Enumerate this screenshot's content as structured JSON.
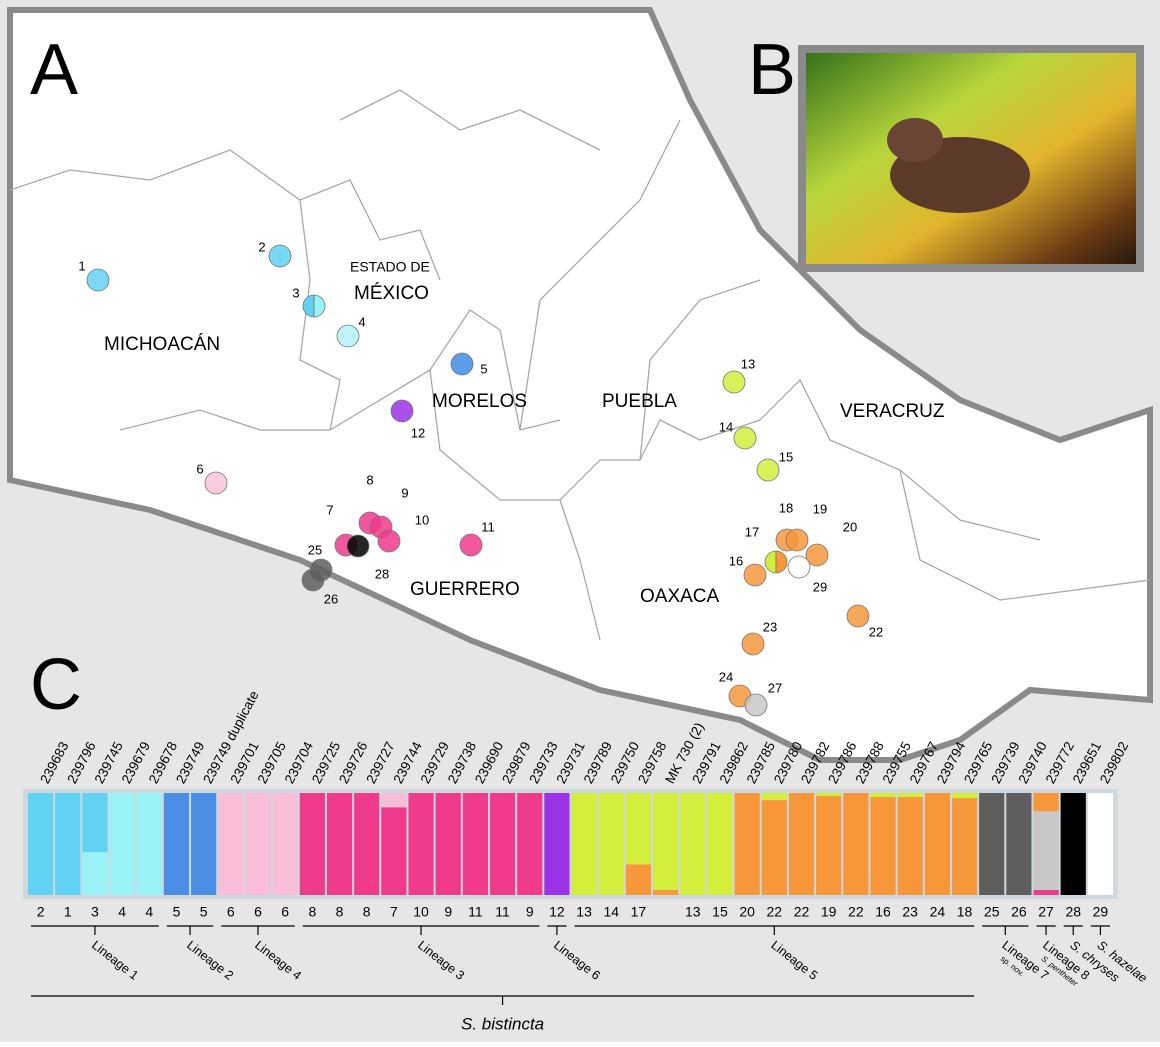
{
  "panels": {
    "a": "A",
    "b": "B",
    "c": "C"
  },
  "regions": [
    "MICHOACÁN",
    "ESTADO DE",
    "MÉXICO",
    "MORELOS",
    "PUEBLA",
    "VERACRUZ",
    "GUERRERO",
    "OAXACA"
  ],
  "sites": [
    {
      "label": 1,
      "colors": [
        "#62d2f2"
      ]
    },
    {
      "label": 2,
      "colors": [
        "#62d2f2"
      ]
    },
    {
      "label": 3,
      "colors": [
        "#62d2f2",
        "#98f2f6"
      ]
    },
    {
      "label": 4,
      "colors": [
        "#b2f3f6"
      ]
    },
    {
      "label": 5,
      "colors": [
        "#3f8be6"
      ]
    },
    {
      "label": 12,
      "colors": [
        "#9a33e6"
      ]
    },
    {
      "label": 6,
      "colors": [
        "#f8c3da"
      ]
    },
    {
      "label": 7,
      "colors": [
        "#f03a8c"
      ]
    },
    {
      "label": 8,
      "colors": [
        "#f03a8c"
      ]
    },
    {
      "label": 9,
      "colors": [
        "#f03a8c"
      ]
    },
    {
      "label": 10,
      "colors": [
        "#f03a8c"
      ]
    },
    {
      "label": 11,
      "colors": [
        "#f03a8c"
      ]
    },
    {
      "label": 28,
      "colors": [
        "#000000"
      ]
    },
    {
      "label": 25,
      "colors": [
        "#5e5e5e"
      ]
    },
    {
      "label": 26,
      "colors": [
        "#5e5e5e"
      ]
    },
    {
      "label": 13,
      "colors": [
        "#d2ee3b"
      ]
    },
    {
      "label": 14,
      "colors": [
        "#d2ee3b"
      ]
    },
    {
      "label": 15,
      "colors": [
        "#d2ee3b"
      ]
    },
    {
      "label": 16,
      "colors": [
        "#f7973a"
      ]
    },
    {
      "label": 17,
      "colors": [
        "#d2ee3b",
        "#f7973a"
      ]
    },
    {
      "label": 18,
      "colors": [
        "#f7973a"
      ]
    },
    {
      "label": 19,
      "colors": [
        "#f7973a"
      ]
    },
    {
      "label": 20,
      "colors": [
        "#f7973a"
      ]
    },
    {
      "label": 29,
      "colors": [
        "#ffffff"
      ]
    },
    {
      "label": 22,
      "colors": [
        "#f7973a"
      ]
    },
    {
      "label": 23,
      "colors": [
        "#f7973a"
      ]
    },
    {
      "label": 24,
      "colors": [
        "#f7973a"
      ]
    },
    {
      "label": 27,
      "colors": [
        "#c8c8c8"
      ]
    }
  ],
  "structure": {
    "bars": [
      {
        "id": "239683",
        "site": 2,
        "segments": [
          {
            "color": "#62d2f2",
            "value": 100
          }
        ]
      },
      {
        "id": "239796",
        "site": 1,
        "segments": [
          {
            "color": "#62d2f2",
            "value": 100
          }
        ]
      },
      {
        "id": "239745",
        "site": 3,
        "segments": [
          {
            "color": "#98f2f6",
            "value": 42
          },
          {
            "color": "#62d2f2",
            "value": 58
          }
        ]
      },
      {
        "id": "239679",
        "site": 4,
        "segments": [
          {
            "color": "#98f2f6",
            "value": 100
          }
        ]
      },
      {
        "id": "239678",
        "site": 4,
        "segments": [
          {
            "color": "#98f2f6",
            "value": 100
          }
        ]
      },
      {
        "id": "239749",
        "site": 5,
        "segments": [
          {
            "color": "#4a8ee6",
            "value": 100
          }
        ]
      },
      {
        "id": "239749 duplicate",
        "site": 5,
        "segments": [
          {
            "color": "#4a8ee6",
            "value": 100
          }
        ]
      },
      {
        "id": "239701",
        "site": 6,
        "segments": [
          {
            "color": "#f8bdd7",
            "value": 100
          }
        ]
      },
      {
        "id": "239705",
        "site": 6,
        "segments": [
          {
            "color": "#f8bdd7",
            "value": 100
          }
        ]
      },
      {
        "id": "239704",
        "site": 6,
        "segments": [
          {
            "color": "#f8bdd7",
            "value": 100
          }
        ]
      },
      {
        "id": "239725",
        "site": 8,
        "segments": [
          {
            "color": "#f03a8c",
            "value": 100
          }
        ]
      },
      {
        "id": "239726",
        "site": 8,
        "segments": [
          {
            "color": "#f03a8c",
            "value": 100
          }
        ]
      },
      {
        "id": "239727",
        "site": 8,
        "segments": [
          {
            "color": "#f03a8c",
            "value": 100
          }
        ]
      },
      {
        "id": "239744",
        "site": 7,
        "segments": [
          {
            "color": "#f03a8c",
            "value": 86
          },
          {
            "color": "#f8bdd7",
            "value": 14
          }
        ]
      },
      {
        "id": "239729",
        "site": 10,
        "segments": [
          {
            "color": "#f03a8c",
            "value": 100
          }
        ]
      },
      {
        "id": "239738",
        "site": 9,
        "segments": [
          {
            "color": "#f03a8c",
            "value": 100
          }
        ]
      },
      {
        "id": "239690",
        "site": 11,
        "segments": [
          {
            "color": "#f03a8c",
            "value": 100
          }
        ]
      },
      {
        "id": "239879",
        "site": 11,
        "segments": [
          {
            "color": "#f03a8c",
            "value": 100
          }
        ]
      },
      {
        "id": "239733",
        "site": 9,
        "segments": [
          {
            "color": "#f03a8c",
            "value": 100
          }
        ]
      },
      {
        "id": "239731",
        "site": 12,
        "segments": [
          {
            "color": "#9a33e6",
            "value": 100
          }
        ]
      },
      {
        "id": "239789",
        "site": 13,
        "segments": [
          {
            "color": "#d2ee3b",
            "value": 100
          }
        ]
      },
      {
        "id": "239750",
        "site": 14,
        "segments": [
          {
            "color": "#d2ee3b",
            "value": 100
          }
        ]
      },
      {
        "id": "239758",
        "site": 17,
        "segments": [
          {
            "color": "#f7973a",
            "value": 30
          },
          {
            "color": "#d2ee3b",
            "value": 70
          }
        ]
      },
      {
        "id": "MK 730 (2)",
        "site": null,
        "segments": [
          {
            "color": "#f7973a",
            "value": 5
          },
          {
            "color": "#d2ee3b",
            "value": 95
          }
        ]
      },
      {
        "id": "239791",
        "site": 13,
        "segments": [
          {
            "color": "#d2ee3b",
            "value": 100
          }
        ]
      },
      {
        "id": "239862",
        "site": 15,
        "segments": [
          {
            "color": "#d2ee3b",
            "value": 100
          }
        ]
      },
      {
        "id": "239785",
        "site": 20,
        "segments": [
          {
            "color": "#f7973a",
            "value": 100
          }
        ]
      },
      {
        "id": "239780",
        "site": 22,
        "segments": [
          {
            "color": "#f7973a",
            "value": 93
          },
          {
            "color": "#d2ee3b",
            "value": 7
          }
        ]
      },
      {
        "id": "239782",
        "site": 22,
        "segments": [
          {
            "color": "#f7973a",
            "value": 100
          }
        ]
      },
      {
        "id": "239786",
        "site": 19,
        "segments": [
          {
            "color": "#f7973a",
            "value": 97
          },
          {
            "color": "#d2ee3b",
            "value": 3
          }
        ]
      },
      {
        "id": "239788",
        "site": 22,
        "segments": [
          {
            "color": "#f7973a",
            "value": 100
          }
        ]
      },
      {
        "id": "239755",
        "site": 16,
        "segments": [
          {
            "color": "#f7973a",
            "value": 96
          },
          {
            "color": "#d2ee3b",
            "value": 4
          }
        ]
      },
      {
        "id": "239767",
        "site": 23,
        "segments": [
          {
            "color": "#f7973a",
            "value": 96
          },
          {
            "color": "#d2ee3b",
            "value": 4
          }
        ]
      },
      {
        "id": "239794",
        "site": 24,
        "segments": [
          {
            "color": "#f7973a",
            "value": 100
          }
        ]
      },
      {
        "id": "239765",
        "site": 18,
        "segments": [
          {
            "color": "#f7973a",
            "value": 95
          },
          {
            "color": "#d2ee3b",
            "value": 5
          }
        ]
      },
      {
        "id": "239739",
        "site": 25,
        "segments": [
          {
            "color": "#5e5e5e",
            "value": 100
          }
        ]
      },
      {
        "id": "239740",
        "site": 26,
        "segments": [
          {
            "color": "#5e5e5e",
            "value": 100
          }
        ]
      },
      {
        "id": "239772",
        "site": 27,
        "segments": [
          {
            "color": "#f03a8c",
            "value": 5
          },
          {
            "color": "#c8c8c8",
            "value": 77
          },
          {
            "color": "#f7973a",
            "value": 18
          }
        ]
      },
      {
        "id": "239651",
        "site": 28,
        "segments": [
          {
            "color": "#000000",
            "value": 100
          }
        ]
      },
      {
        "id": "239802",
        "site": 29,
        "segments": [
          {
            "color": "#ffffff",
            "value": 100
          }
        ]
      }
    ],
    "groups": [
      {
        "label": "Lineage 1",
        "from": 0,
        "to": 4
      },
      {
        "label": "Lineage 2",
        "from": 5,
        "to": 6
      },
      {
        "label": "Lineage 4",
        "from": 7,
        "to": 9
      },
      {
        "label": "Lineage 3",
        "from": 10,
        "to": 18
      },
      {
        "label": "Lineage 6",
        "from": 19,
        "to": 19
      },
      {
        "label": "Lineage 5",
        "from": 20,
        "to": 34
      },
      {
        "label": "Lineage 7",
        "sub": "sp. nov.",
        "from": 35,
        "to": 36
      },
      {
        "label": "Lineage 8",
        "sub": "S. pentheter",
        "from": 37,
        "to": 37
      },
      {
        "label": "S. chryses",
        "from": 38,
        "to": 38
      },
      {
        "label": "S. hazelae",
        "from": 39,
        "to": 39
      }
    ],
    "species": {
      "label": "S. bistincta",
      "from": 0,
      "to": 34
    }
  }
}
